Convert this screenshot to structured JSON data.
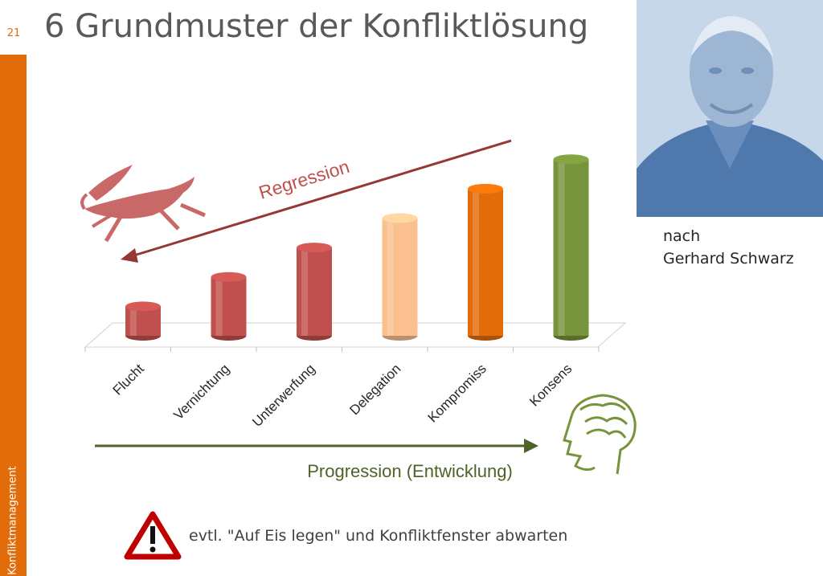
{
  "page_number": "21",
  "title": "6 Grundmuster der Konfliktlösung",
  "sidebar_label": "Konfliktmanagement",
  "attribution": {
    "line1": "nach",
    "line2": "Gerhard Schwarz"
  },
  "regression_label": "Regression",
  "progression_label": "Progression (Entwicklung)",
  "warning_text": "evtl. \"Auf Eis legen\" und Konfliktfenster abwarten",
  "colors": {
    "accent": "#e36c0a",
    "regression": "#953735",
    "progression": "#4f6228"
  },
  "chart_data": {
    "type": "bar",
    "categories": [
      "Flucht",
      "Vernichtung",
      "Unterwerfung",
      "Delegation",
      "Kompromiss",
      "Konsens"
    ],
    "values": [
      1,
      2,
      3,
      4,
      5,
      6
    ],
    "bar_colors": [
      "#c0504d",
      "#c0504d",
      "#c0504d",
      "#fac090",
      "#e36c0a",
      "#77933c"
    ],
    "ylim": [
      0,
      6.5
    ],
    "grid": false
  }
}
